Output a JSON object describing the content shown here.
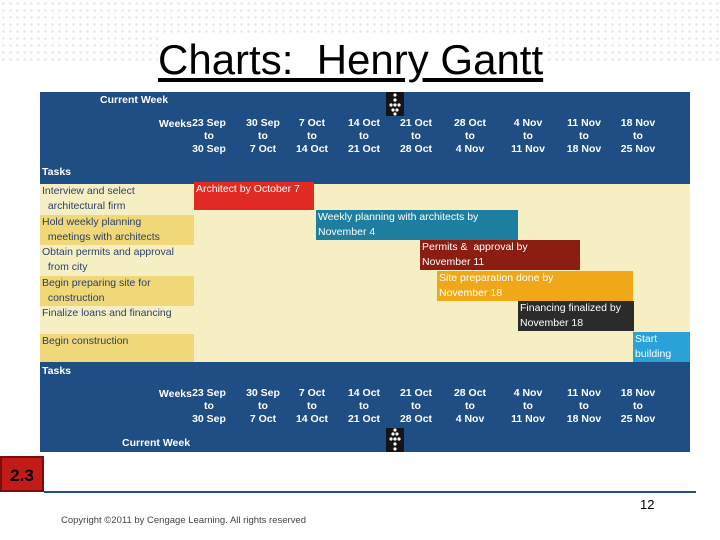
{
  "slide": {
    "title": "Charts:  Henry Gantt",
    "badge": "2.3",
    "page_number": "12",
    "copyright": "Copyright ©2011 by Cengage Learning. All rights reserved"
  },
  "gantt": {
    "current_week_label": "Current Week",
    "weeks_label": "Weeks",
    "tasks_label": "Tasks",
    "weeks": [
      [
        "23 Sep",
        "to",
        "30 Sep"
      ],
      [
        "30 Sep",
        "to",
        "7 Oct"
      ],
      [
        "7 Oct",
        "to",
        "14 Oct"
      ],
      [
        "14 Oct",
        "to",
        "21 Oct"
      ],
      [
        "21 Oct",
        "to",
        "28 Oct"
      ],
      [
        "28 Oct",
        "to",
        "4 Nov"
      ],
      [
        "4 Nov",
        "to",
        "11 Nov"
      ],
      [
        "11 Nov",
        "to",
        "18 Nov"
      ],
      [
        "18 Nov",
        "to",
        "25 Nov"
      ]
    ],
    "tasks": [
      {
        "lines": [
          "Interview and select",
          "  architectural firm"
        ],
        "bar": {
          "text": [
            "Architect by October 7"
          ],
          "color": "#e02a22"
        }
      },
      {
        "lines": [
          "Hold weekly planning",
          "  meetings with architects"
        ],
        "bar": {
          "text": [
            "Weekly planning with architects by",
            "November 4"
          ],
          "color": "#1e7ea0"
        }
      },
      {
        "lines": [
          "Obtain permits and approval",
          "  from city"
        ],
        "bar": {
          "text": [
            "Permits &  approval by",
            "November 11"
          ],
          "color": "#8b1e10"
        }
      },
      {
        "lines": [
          "Begin preparing site for",
          "  construction"
        ],
        "bar": {
          "text": [
            "Site preparation done by",
            "November 18"
          ],
          "color": "#f0a818"
        }
      },
      {
        "lines": [
          "Finalize loans and financing"
        ],
        "bar": {
          "text": [
            "Financing finalized by",
            "November 18"
          ],
          "color": "#2b2b2b"
        }
      },
      {
        "lines": [
          "Begin construction"
        ],
        "bar": {
          "text": [
            "Start",
            "building"
          ],
          "color": "#2aa2d8"
        }
      }
    ]
  }
}
